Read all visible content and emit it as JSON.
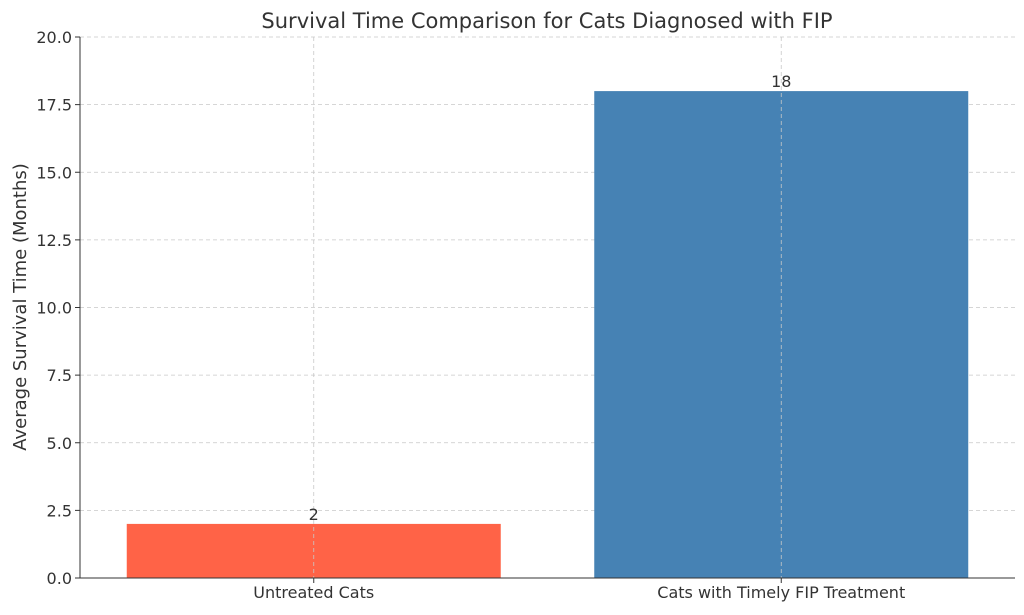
{
  "chart_data": {
    "type": "bar",
    "title": "Survival Time Comparison for Cats Diagnosed with FIP",
    "xlabel": "",
    "ylabel": "Average Survival Time (Months)",
    "categories": [
      "Untreated Cats",
      "Cats with Timely FIP Treatment"
    ],
    "values": [
      2,
      18
    ],
    "data_labels": [
      "2",
      "18"
    ],
    "bar_colors": [
      "#ff6347",
      "#4682b4"
    ],
    "ylim": [
      0,
      20
    ],
    "yticks": [
      0,
      2.5,
      5,
      7.5,
      10,
      12.5,
      15,
      17.5,
      20
    ],
    "ytick_labels": [
      "0.0",
      "2.5",
      "5.0",
      "7.5",
      "10.0",
      "12.5",
      "15.0",
      "17.5",
      "20.0"
    ],
    "grid": true,
    "legend": false
  }
}
